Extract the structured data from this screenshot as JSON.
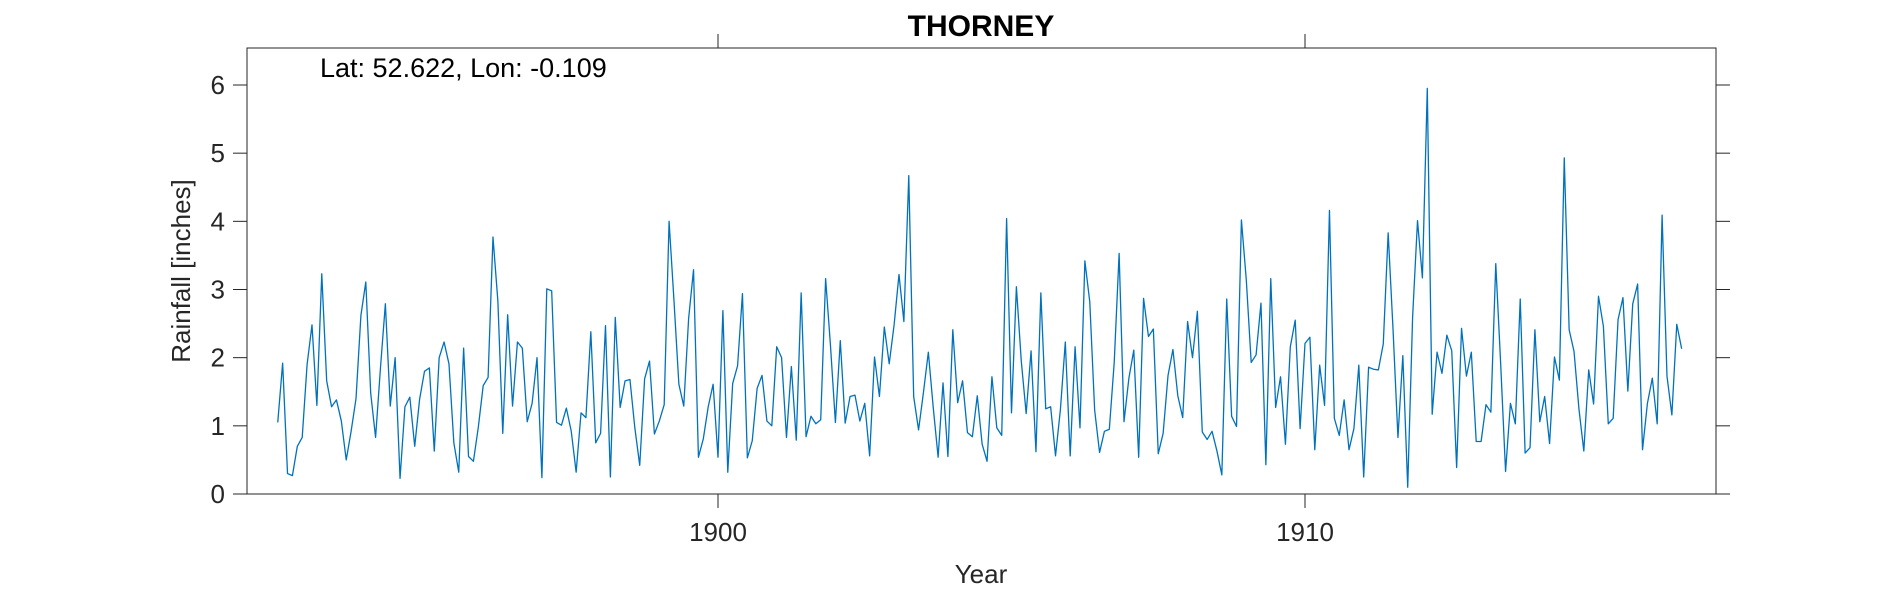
{
  "chart_data": {
    "type": "line",
    "title": "THORNEY",
    "xlabel": "Year",
    "ylabel": "Rainfall [inches]",
    "annotation": "Lat: 52.622, Lon: -0.109",
    "xlim": [
      1892.0,
      1917.3
    ],
    "ylim": [
      0,
      6.5
    ],
    "xticks": [
      1900,
      1910
    ],
    "xtick_labels": [
      "1900",
      "1910"
    ],
    "yticks": [
      0,
      1,
      2,
      3,
      4,
      5,
      6
    ],
    "ytick_labels": [
      "0",
      "1",
      "2",
      "3",
      "4",
      "5",
      "6"
    ],
    "grid": false,
    "series_color": "#0072BD",
    "series": [
      {
        "x_start": 1892.5,
        "x_step": 0.0833333,
        "values": [
          1.05,
          1.92,
          0.3,
          0.27,
          0.7,
          0.83,
          1.9,
          2.48,
          1.3,
          3.23,
          1.66,
          1.28,
          1.38,
          1.07,
          0.5,
          0.92,
          1.4,
          2.62,
          3.11,
          1.48,
          0.83,
          1.85,
          2.79,
          1.29,
          2.0,
          0.23,
          1.28,
          1.42,
          0.7,
          1.39,
          1.8,
          1.85,
          0.63,
          2.0,
          2.23,
          1.91,
          0.75,
          0.32,
          2.14,
          0.55,
          0.48,
          0.98,
          1.59,
          1.71,
          3.77,
          2.83,
          0.89,
          2.63,
          1.29,
          2.23,
          2.14,
          1.06,
          1.33,
          2.0,
          0.24,
          3.01,
          2.98,
          1.05,
          1.01,
          1.26,
          0.92,
          0.32,
          1.19,
          1.12,
          2.38,
          0.75,
          0.89,
          2.47,
          0.25,
          2.59,
          1.27,
          1.66,
          1.68,
          0.97,
          0.42,
          1.69,
          1.95,
          0.88,
          1.07,
          1.31,
          4.0,
          2.84,
          1.61,
          1.29,
          2.58,
          3.29,
          0.54,
          0.81,
          1.28,
          1.61,
          0.54,
          2.69,
          0.32,
          1.62,
          1.88,
          2.94,
          0.53,
          0.78,
          1.55,
          1.74,
          1.07,
          1.0,
          2.16,
          2.0,
          0.83,
          1.87,
          0.79,
          2.95,
          0.84,
          1.14,
          1.03,
          1.09,
          3.16,
          2.17,
          1.05,
          2.25,
          1.04,
          1.43,
          1.45,
          1.07,
          1.33,
          0.56,
          2.01,
          1.43,
          2.45,
          1.91,
          2.48,
          3.22,
          2.53,
          4.67,
          1.43,
          0.94,
          1.49,
          2.08,
          1.27,
          0.54,
          1.63,
          0.55,
          2.41,
          1.34,
          1.66,
          0.9,
          0.84,
          1.44,
          0.73,
          0.48,
          1.72,
          0.97,
          0.86,
          4.04,
          1.19,
          3.04,
          1.95,
          1.18,
          2.1,
          0.62,
          2.95,
          1.25,
          1.28,
          0.56,
          1.24,
          2.23,
          0.56,
          2.16,
          0.97,
          3.42,
          2.82,
          1.23,
          0.61,
          0.92,
          0.95,
          1.93,
          3.53,
          1.06,
          1.7,
          2.11,
          0.54,
          2.87,
          2.31,
          2.42,
          0.59,
          0.89,
          1.74,
          2.12,
          1.44,
          1.12,
          2.53,
          2.0,
          2.68,
          0.91,
          0.8,
          0.92,
          0.63,
          0.28,
          2.86,
          1.14,
          0.99,
          4.02,
          3.14,
          1.93,
          2.04,
          2.8,
          0.43,
          3.16,
          1.27,
          1.72,
          0.73,
          2.16,
          2.55,
          0.96,
          2.21,
          2.3,
          0.65,
          1.89,
          1.3,
          4.16,
          1.11,
          0.86,
          1.38,
          0.65,
          0.96,
          1.89,
          0.25,
          1.86,
          1.83,
          1.82,
          2.2,
          3.83,
          2.41,
          0.83,
          2.03,
          0.1,
          2.6,
          4.01,
          3.17,
          5.95,
          1.17,
          2.08,
          1.77,
          2.33,
          2.1,
          0.39,
          2.43,
          1.73,
          2.08,
          0.77,
          0.77,
          1.31,
          1.2,
          3.38,
          1.91,
          0.33,
          1.33,
          1.03,
          2.86,
          0.6,
          0.68,
          2.41,
          1.06,
          1.43,
          0.74,
          2.01,
          1.67,
          4.93,
          2.41,
          2.09,
          1.25,
          0.63,
          1.82,
          1.32,
          2.9,
          2.46,
          1.03,
          1.11,
          2.56,
          2.88,
          1.51,
          2.79,
          3.08,
          0.65,
          1.33,
          1.7,
          1.03,
          4.09,
          1.73,
          1.16,
          2.49,
          2.13
        ]
      }
    ]
  }
}
